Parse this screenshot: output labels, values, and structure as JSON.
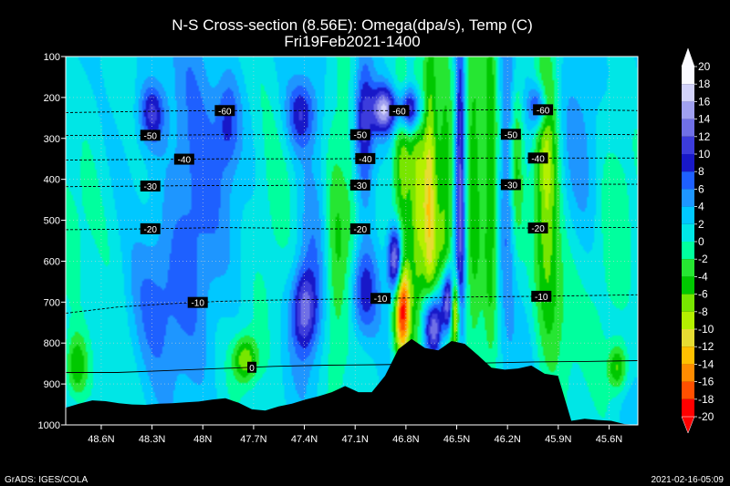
{
  "chart_data": {
    "type": "heatmap",
    "title": "N-S Cross-section (8.56E): Omega(dpa/s), Temp (C)",
    "subtitle": "Fri19Feb2021-1400",
    "x_ticks": [
      "48.6N",
      "48.3N",
      "48N",
      "47.7N",
      "47.4N",
      "47.1N",
      "46.8N",
      "46.5N",
      "46.2N",
      "45.9N",
      "45.6N"
    ],
    "x_lat": [
      48.6,
      48.3,
      48.0,
      47.7,
      47.4,
      47.1,
      46.8,
      46.5,
      46.2,
      45.9,
      45.6
    ],
    "xlim": [
      48.81,
      45.43
    ],
    "y_ticks": [
      100,
      200,
      300,
      400,
      500,
      600,
      700,
      800,
      900,
      1000
    ],
    "ylim": [
      100,
      1000
    ],
    "colorbar_levels": [
      20,
      18,
      16,
      14,
      12,
      10,
      8,
      6,
      4,
      2,
      0,
      -2,
      -4,
      -6,
      -8,
      -10,
      -12,
      -14,
      -16,
      -18,
      -20
    ],
    "colorbar_colors": [
      "#fafaff",
      "#d2d2fa",
      "#a0a0f0",
      "#7070e6",
      "#3c3cdc",
      "#1818c8",
      "#1e60ff",
      "#1e96ff",
      "#00c8ff",
      "#00e6e6",
      "#00ff9e",
      "#26e632",
      "#00c800",
      "#78e600",
      "#b4f000",
      "#e6dc32",
      "#ffc000",
      "#ff8c00",
      "#ff5000",
      "#ff0000"
    ],
    "temperature_contours": [
      {
        "label": "-60",
        "p": [
          237,
          235,
          233,
          232,
          232,
          232,
          232,
          232,
          230,
          230,
          230,
          232
        ]
      },
      {
        "label": "-50",
        "p": [
          293,
          293,
          292,
          291,
          291,
          291,
          291,
          290,
          290,
          290,
          290,
          291
        ]
      },
      {
        "label": "-40",
        "p": [
          353,
          352,
          351,
          350,
          350,
          350,
          349,
          349,
          348,
          348,
          348,
          348
        ]
      },
      {
        "label": "-30",
        "p": [
          418,
          417,
          416,
          415,
          415,
          414,
          414,
          413,
          413,
          413,
          412,
          412
        ]
      },
      {
        "label": "-20",
        "p": [
          523,
          522,
          520,
          518,
          519,
          521,
          521,
          520,
          519,
          519,
          518,
          518
        ]
      },
      {
        "label": "-10",
        "p": [
          727,
          712,
          704,
          698,
          695,
          693,
          691,
          689,
          687,
          686,
          684,
          682
        ]
      },
      {
        "label": "0",
        "p": [
          872,
          872,
          867,
          862,
          857,
          854,
          853,
          851,
          849,
          846,
          845,
          843
        ]
      }
    ],
    "temperature_label_positions": [
      {
        "label": "-60",
        "lat": [
          47.87,
          46.84,
          45.99
        ]
      },
      {
        "label": "-50",
        "lat": [
          48.31,
          47.07,
          46.18
        ]
      },
      {
        "label": "-40",
        "lat": [
          48.11,
          47.04,
          46.02
        ]
      },
      {
        "label": "-30",
        "lat": [
          48.31,
          47.07,
          46.18
        ]
      },
      {
        "label": "-20",
        "lat": [
          48.31,
          47.07,
          46.02
        ]
      },
      {
        "label": "-10",
        "lat": [
          48.03,
          46.95,
          46.0
        ]
      },
      {
        "label": "0",
        "lat": [
          47.71
        ]
      }
    ],
    "terrain_surface_hPa": [
      958,
      948,
      940,
      942,
      947,
      950,
      951,
      948,
      947,
      945,
      943,
      938,
      935,
      946,
      962,
      965,
      955,
      948,
      938,
      930,
      920,
      905,
      920,
      920,
      880,
      815,
      790,
      812,
      818,
      795,
      802,
      830,
      860,
      865,
      862,
      855,
      875,
      880,
      990,
      985,
      988,
      990,
      998,
      1002
    ],
    "omega_field": {
      "base": 1.8,
      "blobs": [
        {
          "lat": 48.75,
          "p": 860,
          "sx": 0.05,
          "sp": 60,
          "v": -8
        },
        {
          "lat": 48.65,
          "p": 560,
          "sx": 0.25,
          "sp": 180,
          "v": -2
        },
        {
          "lat": 48.3,
          "p": 240,
          "sx": 0.05,
          "sp": 50,
          "v": 8
        },
        {
          "lat": 48.3,
          "p": 700,
          "sx": 0.12,
          "sp": 140,
          "v": 5
        },
        {
          "lat": 48.05,
          "p": 430,
          "sx": 0.12,
          "sp": 250,
          "v": 6
        },
        {
          "lat": 47.85,
          "p": 260,
          "sx": 0.05,
          "sp": 80,
          "v": 6
        },
        {
          "lat": 47.75,
          "p": 840,
          "sx": 0.05,
          "sp": 40,
          "v": -9
        },
        {
          "lat": 47.6,
          "p": 500,
          "sx": 0.1,
          "sp": 300,
          "v": -2
        },
        {
          "lat": 47.42,
          "p": 240,
          "sx": 0.06,
          "sp": 60,
          "v": 8
        },
        {
          "lat": 47.4,
          "p": 720,
          "sx": 0.05,
          "sp": 70,
          "v": 10
        },
        {
          "lat": 47.35,
          "p": 560,
          "sx": 0.08,
          "sp": 200,
          "v": 4
        },
        {
          "lat": 47.22,
          "p": 550,
          "sx": 0.05,
          "sp": 250,
          "v": -6
        },
        {
          "lat": 47.05,
          "p": 270,
          "sx": 0.04,
          "sp": 120,
          "v": 10
        },
        {
          "lat": 47.05,
          "p": 680,
          "sx": 0.06,
          "sp": 80,
          "v": 8
        },
        {
          "lat": 47.12,
          "p": 460,
          "sx": 0.05,
          "sp": 160,
          "v": -5
        },
        {
          "lat": 46.93,
          "p": 230,
          "sx": 0.05,
          "sp": 40,
          "v": 14
        },
        {
          "lat": 46.86,
          "p": 600,
          "sx": 0.03,
          "sp": 60,
          "v": 18
        },
        {
          "lat": 46.82,
          "p": 720,
          "sx": 0.035,
          "sp": 90,
          "v": -20
        },
        {
          "lat": 46.82,
          "p": 370,
          "sx": 0.04,
          "sp": 180,
          "v": -8
        },
        {
          "lat": 46.78,
          "p": 230,
          "sx": 0.05,
          "sp": 40,
          "v": 14
        },
        {
          "lat": 46.73,
          "p": 500,
          "sx": 0.03,
          "sp": 300,
          "v": -8
        },
        {
          "lat": 46.66,
          "p": 450,
          "sx": 0.03,
          "sp": 300,
          "v": -12
        },
        {
          "lat": 46.64,
          "p": 760,
          "sx": 0.04,
          "sp": 60,
          "v": 18
        },
        {
          "lat": 46.57,
          "p": 540,
          "sx": 0.04,
          "sp": 300,
          "v": -9
        },
        {
          "lat": 46.55,
          "p": 700,
          "sx": 0.03,
          "sp": 60,
          "v": 20
        },
        {
          "lat": 46.51,
          "p": 720,
          "sx": 0.02,
          "sp": 60,
          "v": -18
        },
        {
          "lat": 46.48,
          "p": 430,
          "sx": 0.02,
          "sp": 300,
          "v": 12
        },
        {
          "lat": 46.4,
          "p": 400,
          "sx": 0.04,
          "sp": 300,
          "v": -8
        },
        {
          "lat": 46.3,
          "p": 400,
          "sx": 0.03,
          "sp": 300,
          "v": -8
        },
        {
          "lat": 46.2,
          "p": 380,
          "sx": 0.03,
          "sp": 250,
          "v": 6
        },
        {
          "lat": 46.15,
          "p": 330,
          "sx": 0.03,
          "sp": 150,
          "v": -6
        },
        {
          "lat": 46.02,
          "p": 220,
          "sx": 0.04,
          "sp": 40,
          "v": 10
        },
        {
          "lat": 45.97,
          "p": 380,
          "sx": 0.05,
          "sp": 250,
          "v": -10
        },
        {
          "lat": 45.9,
          "p": 700,
          "sx": 0.08,
          "sp": 150,
          "v": -4
        },
        {
          "lat": 45.75,
          "p": 250,
          "sx": 0.1,
          "sp": 200,
          "v": 3
        },
        {
          "lat": 45.55,
          "p": 860,
          "sx": 0.04,
          "sp": 40,
          "v": -8
        },
        {
          "lat": 45.6,
          "p": 500,
          "sx": 0.1,
          "sp": 300,
          "v": -3
        }
      ]
    }
  },
  "footer": {
    "left": "GrADS: IGES/COLA",
    "right": "2021-02-16-05:09"
  }
}
